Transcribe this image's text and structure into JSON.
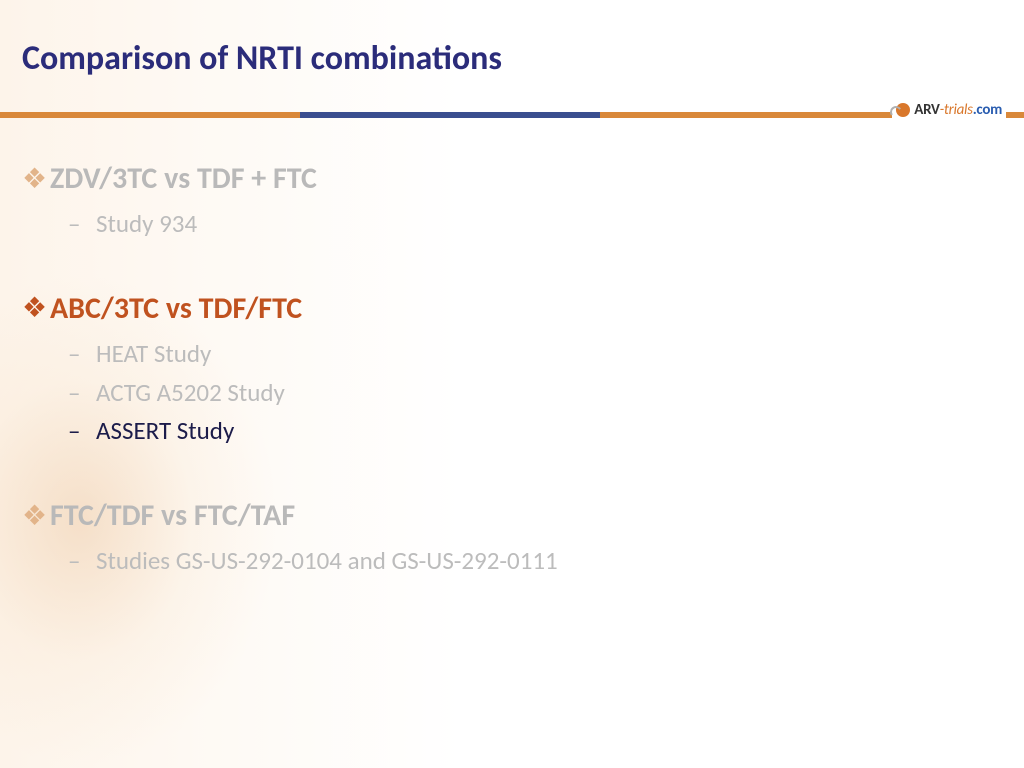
{
  "title": "Comparison of NRTI combinations",
  "logo": {
    "part1": "ARV",
    "part2": "-trials",
    "part3": ".com"
  },
  "colors": {
    "title": "#2b2c7a",
    "orange": "#d9883a",
    "blue_bar": "#3a4e8f",
    "muted_text": "#b9b9b9",
    "active_head": "#c0521f",
    "active_sub": "#1c1c4a"
  },
  "sections": [
    {
      "title": "ZDV/3TC vs TDF + FTC",
      "active": false,
      "items": [
        {
          "label": "Study 934",
          "active": false
        }
      ]
    },
    {
      "title": "ABC/3TC vs TDF/FTC",
      "active": true,
      "items": [
        {
          "label": "HEAT Study",
          "active": false
        },
        {
          "label": "ACTG A5202 Study",
          "active": false
        },
        {
          "label": "ASSERT Study",
          "active": true
        }
      ]
    },
    {
      "title": "FTC/TDF vs FTC/TAF",
      "active": false,
      "items": [
        {
          "label": "Studies GS-US-292-0104 and GS-US-292-0111",
          "active": false
        }
      ]
    }
  ]
}
